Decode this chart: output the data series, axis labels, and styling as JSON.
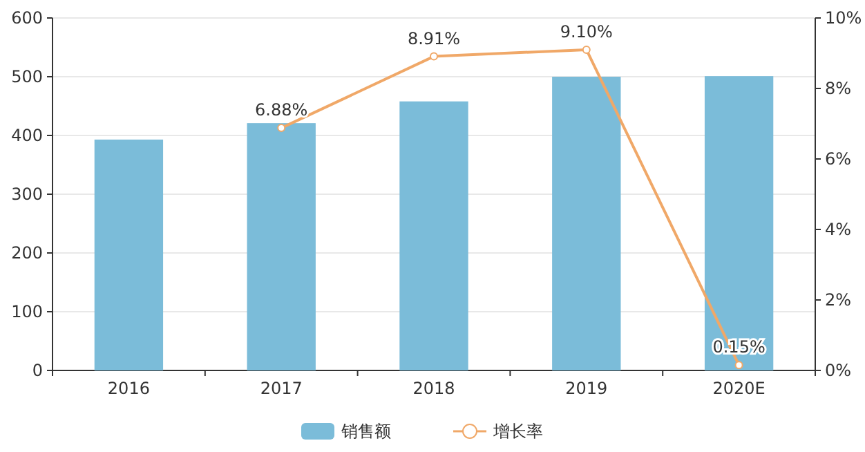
{
  "chart_data": {
    "type": "bar",
    "categories": [
      "2016",
      "2017",
      "2018",
      "2019",
      "2020E"
    ],
    "series": [
      {
        "name": "销售额",
        "color": "#7bbcd9",
        "values": [
          393,
          421,
          458,
          500,
          501
        ]
      },
      {
        "name": "增长率",
        "type": "line",
        "axis": "y2",
        "color": "#f0a868",
        "marker": "circle",
        "values": [
          null,
          6.88,
          8.91,
          9.1,
          0.15
        ],
        "value_labels": [
          null,
          "6.88%",
          "8.91%",
          "9.10%",
          "0.15%"
        ]
      }
    ],
    "ylim": [
      0,
      600
    ],
    "yticks": [
      0,
      100,
      200,
      300,
      400,
      500,
      600
    ],
    "y2lim": [
      0,
      10
    ],
    "y2ticks": [
      {
        "value": 0,
        "label": "0%"
      },
      {
        "value": 2,
        "label": "2%"
      },
      {
        "value": 4,
        "label": "4%"
      },
      {
        "value": 6,
        "label": "6%"
      },
      {
        "value": 8,
        "label": "8%"
      },
      {
        "value": 10,
        "label": "10%"
      }
    ],
    "grid": "y",
    "legend": "bottom"
  }
}
